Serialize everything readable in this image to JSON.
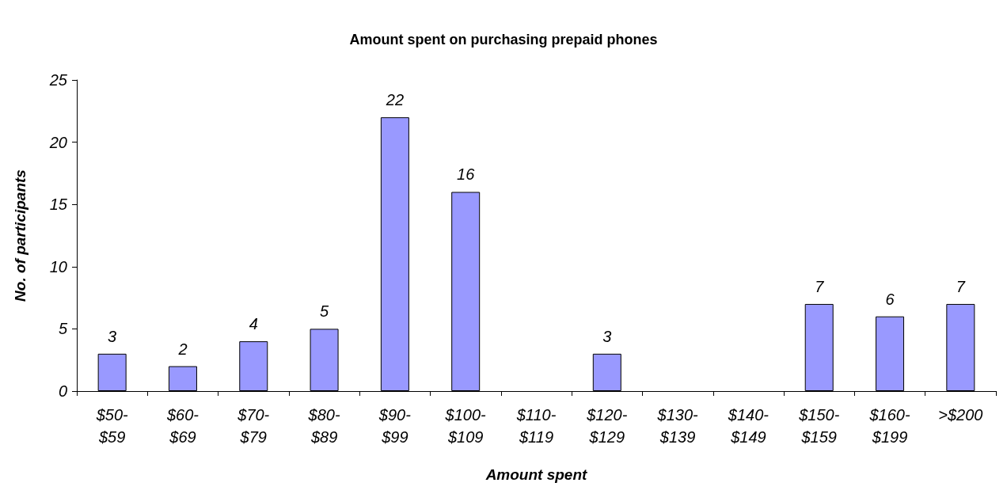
{
  "chart_data": {
    "type": "bar",
    "title": "Amount spent on purchasing prepaid phones",
    "xlabel": "Amount spent",
    "ylabel": "No. of participants",
    "categories": [
      "$50-$59",
      "$60-$69",
      "$70-$79",
      "$80-$89",
      "$90-$99",
      "$100-$109",
      "$110-$119",
      "$120-$129",
      "$130-$139",
      "$140-$149",
      "$150-$159",
      "$160-$199",
      ">$200"
    ],
    "values": [
      3,
      2,
      4,
      5,
      22,
      16,
      null,
      3,
      null,
      null,
      7,
      6,
      7
    ],
    "value_labels": [
      "3",
      "2",
      "4",
      "5",
      "22",
      "16",
      null,
      "3",
      null,
      null,
      "7",
      "6",
      "7"
    ],
    "color": "#9999ff",
    "ylim": [
      0,
      25
    ],
    "yticks": [
      0,
      5,
      10,
      15,
      20,
      25
    ],
    "grid": false
  }
}
